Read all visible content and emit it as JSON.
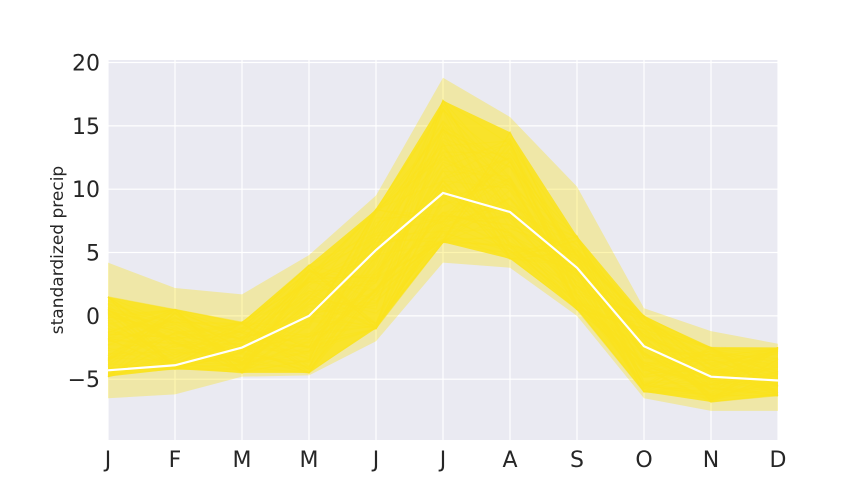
{
  "chart_data": {
    "type": "line",
    "ylabel": "standardized precip",
    "categories": [
      "J",
      "F",
      "M",
      "M",
      "J",
      "J",
      "A",
      "S",
      "O",
      "N",
      "D"
    ],
    "ylim": [
      -9.8,
      20.2
    ],
    "yticks": [
      -5,
      0,
      5,
      10,
      15,
      20
    ],
    "ytick_labels": [
      "−5",
      "0",
      "5",
      "10",
      "15",
      "20"
    ],
    "grid": true,
    "colors": {
      "plot_background": "#eaeaf2",
      "grid": "#ffffff",
      "ensemble": "#f9e21d",
      "mean": "#ffffff"
    },
    "ensemble_envelope": {
      "lower_typical": [
        -4.8,
        -4.2,
        -4.5,
        -4.5,
        -1.0,
        5.8,
        4.5,
        0.5,
        -6.0,
        -6.8,
        -6.3
      ],
      "upper_typical": [
        1.5,
        0.5,
        -0.5,
        4.0,
        8.4,
        17.0,
        14.5,
        6.3,
        0.0,
        -2.5,
        -2.5
      ],
      "lower_extreme": [
        -6.5,
        -6.2,
        -4.8,
        -4.7,
        -2.0,
        4.2,
        3.8,
        0.0,
        -6.5,
        -7.5,
        -7.5
      ],
      "upper_extreme": [
        4.2,
        2.2,
        1.7,
        4.8,
        9.5,
        18.8,
        15.7,
        10.2,
        0.6,
        -1.2,
        -2.2
      ]
    },
    "series": [
      {
        "values": [
          -4.3,
          -3.9,
          -2.5,
          0.0,
          5.2,
          9.7,
          8.2,
          3.8,
          -2.4,
          -4.8,
          -5.1
        ]
      }
    ]
  }
}
